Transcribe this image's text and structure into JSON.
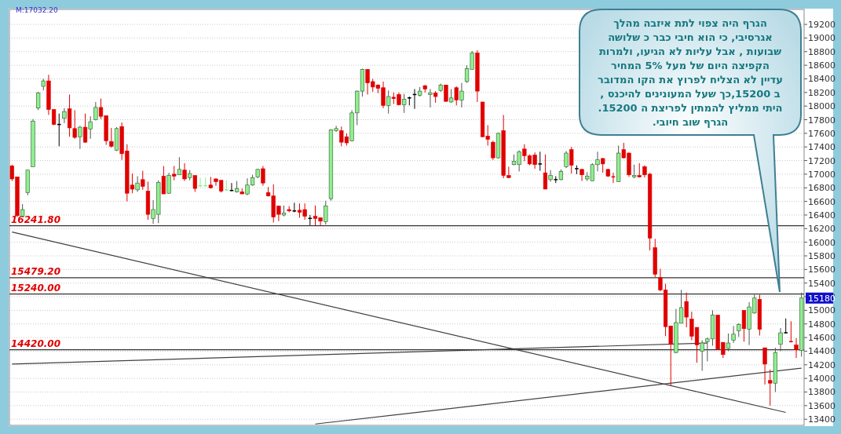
{
  "chart_data": {
    "type": "candlestick",
    "categories": [
      null,
      null,
      null,
      null,
      null,
      null,
      null,
      null,
      null,
      null,
      null,
      null,
      null,
      null,
      null,
      null,
      null,
      null,
      null,
      null,
      null,
      null,
      null,
      null,
      null,
      null,
      null,
      null,
      null,
      null,
      null,
      null,
      null,
      null,
      null,
      null,
      null,
      null,
      null,
      null,
      null,
      null,
      null,
      null,
      null,
      null,
      null,
      null,
      null,
      null,
      null,
      null,
      null,
      null,
      null,
      null,
      null,
      null,
      null,
      null,
      null,
      null,
      null,
      null,
      null,
      null,
      null,
      null,
      null,
      null,
      null,
      null,
      null,
      null,
      null,
      null,
      null,
      null,
      null,
      null,
      null,
      null,
      null,
      null,
      null,
      null,
      null,
      null,
      null,
      null,
      null,
      null,
      null,
      null,
      null,
      null,
      null,
      null,
      null,
      null,
      null,
      null,
      null,
      null,
      null,
      null,
      null,
      null,
      null,
      null,
      null,
      null,
      null,
      null,
      null,
      null,
      null,
      null,
      null,
      null,
      null,
      null,
      null,
      null,
      null,
      null,
      null,
      null,
      null,
      null,
      null,
      null,
      null,
      null,
      null,
      null,
      null,
      null,
      null,
      null,
      null,
      null,
      null,
      null,
      null,
      null,
      null,
      null,
      null,
      null,
      null,
      null
    ],
    "ohlc": [
      [
        17120,
        17140,
        16900,
        16930
      ],
      [
        16960,
        16960,
        16370,
        16390
      ],
      [
        16380,
        16560,
        16370,
        16480
      ],
      [
        16730,
        17060,
        16690,
        17060
      ],
      [
        17110,
        17810,
        17110,
        17780
      ],
      [
        17970,
        18210,
        17940,
        18190
      ],
      [
        18290,
        18400,
        18230,
        18370
      ],
      [
        18370,
        18460,
        17870,
        17950
      ],
      [
        17950,
        17950,
        17720,
        17730
      ],
      [
        17730,
        17890,
        17410,
        17730
      ],
      [
        17820,
        17970,
        17750,
        17920
      ],
      [
        17960,
        18170,
        17550,
        17680
      ],
      [
        17670,
        17940,
        17520,
        17540
      ],
      [
        17550,
        17710,
        17370,
        17690
      ],
      [
        17690,
        17890,
        17460,
        17470
      ],
      [
        17660,
        17850,
        17520,
        17770
      ],
      [
        17800,
        18060,
        17790,
        17980
      ],
      [
        17980,
        18110,
        17810,
        17850
      ],
      [
        17860,
        17860,
        17430,
        17490
      ],
      [
        17480,
        17680,
        17390,
        17410
      ],
      [
        17350,
        17690,
        17340,
        17670
      ],
      [
        17700,
        17760,
        17210,
        17300
      ],
      [
        17340,
        17440,
        16600,
        16720
      ],
      [
        16840,
        17010,
        16720,
        16780
      ],
      [
        16770,
        16970,
        16740,
        16870
      ],
      [
        16920,
        17050,
        16770,
        16820
      ],
      [
        16750,
        16890,
        16330,
        16410
      ],
      [
        16350,
        16620,
        16270,
        16480
      ],
      [
        16410,
        16910,
        16280,
        16880
      ],
      [
        16970,
        17120,
        16710,
        16710
      ],
      [
        16720,
        17020,
        16710,
        16980
      ],
      [
        17000,
        17120,
        16910,
        16970
      ],
      [
        16990,
        17250,
        16990,
        17070
      ],
      [
        17060,
        17160,
        16900,
        16930
      ],
      [
        16950,
        17060,
        16910,
        17010
      ],
      [
        16980,
        16980,
        16740,
        16790
      ],
      [
        16830,
        16950,
        16810,
        16830
      ],
      [
        16830,
        16950,
        16820,
        16830
      ],
      [
        16840,
        16960,
        16790,
        16800
      ],
      [
        16930,
        16940,
        16830,
        16890
      ],
      [
        16910,
        16910,
        16730,
        16750
      ],
      [
        16770,
        16910,
        16760,
        16770
      ],
      [
        16760,
        16870,
        16750,
        16760
      ],
      [
        16740,
        16900,
        16730,
        16790
      ],
      [
        16740,
        16790,
        16710,
        16710
      ],
      [
        16710,
        16940,
        16690,
        16840
      ],
      [
        16840,
        16990,
        16830,
        16950
      ],
      [
        16960,
        17080,
        16940,
        17070
      ],
      [
        17080,
        17120,
        16830,
        16870
      ],
      [
        16730,
        16810,
        16670,
        16680
      ],
      [
        16680,
        16850,
        16290,
        16370
      ],
      [
        16530,
        16540,
        16310,
        16410
      ],
      [
        16400,
        16540,
        16380,
        16430
      ],
      [
        16480,
        16530,
        16440,
        16460
      ],
      [
        16460,
        16580,
        16440,
        16460
      ],
      [
        16470,
        16570,
        16360,
        16440
      ],
      [
        16480,
        16570,
        16330,
        16380
      ],
      [
        16350,
        16400,
        16250,
        16350
      ],
      [
        16380,
        16540,
        16250,
        16350
      ],
      [
        16360,
        16360,
        16250,
        16310
      ],
      [
        16300,
        16610,
        16260,
        16530
      ],
      [
        16640,
        17660,
        16610,
        17650
      ],
      [
        17640,
        17710,
        17620,
        17670
      ],
      [
        17640,
        17700,
        17410,
        17470
      ],
      [
        17550,
        17600,
        17420,
        17460
      ],
      [
        17490,
        17940,
        17480,
        17900
      ],
      [
        17900,
        18230,
        17720,
        18220
      ],
      [
        18220,
        18550,
        18140,
        18540
      ],
      [
        18540,
        18540,
        18170,
        18340
      ],
      [
        18360,
        18400,
        18210,
        18280
      ],
      [
        18310,
        18320,
        18190,
        18260
      ],
      [
        18270,
        18360,
        17970,
        18010
      ],
      [
        18010,
        18230,
        17890,
        18140
      ],
      [
        18130,
        18200,
        18030,
        18110
      ],
      [
        18170,
        18200,
        18010,
        18020
      ],
      [
        18020,
        18180,
        17900,
        18100
      ],
      [
        18120,
        18140,
        18010,
        18120
      ],
      [
        18170,
        18250,
        17960,
        18170
      ],
      [
        18160,
        18280,
        18140,
        18220
      ],
      [
        18300,
        18310,
        18200,
        18250
      ],
      [
        18170,
        18250,
        17980,
        18190
      ],
      [
        18190,
        18220,
        18050,
        18140
      ],
      [
        18230,
        18330,
        18210,
        18310
      ],
      [
        18310,
        18310,
        18060,
        18070
      ],
      [
        18060,
        18250,
        18050,
        18120
      ],
      [
        18270,
        18290,
        18010,
        18090
      ],
      [
        18090,
        18340,
        17980,
        18220
      ],
      [
        18360,
        18600,
        18340,
        18550
      ],
      [
        18540,
        18810,
        18540,
        18780
      ],
      [
        18780,
        18820,
        18060,
        18220
      ],
      [
        18060,
        18060,
        17540,
        17550
      ],
      [
        17560,
        17720,
        17420,
        17510
      ],
      [
        17470,
        17490,
        17210,
        17240
      ],
      [
        17240,
        17610,
        17230,
        17600
      ],
      [
        17640,
        17870,
        16940,
        16980
      ],
      [
        16980,
        17110,
        16940,
        16950
      ],
      [
        17140,
        17290,
        17130,
        17190
      ],
      [
        17140,
        17350,
        17040,
        17330
      ],
      [
        17370,
        17440,
        17190,
        17270
      ],
      [
        17270,
        17290,
        17130,
        17150
      ],
      [
        17280,
        17320,
        17080,
        17140
      ],
      [
        17150,
        17330,
        17050,
        17150
      ],
      [
        17020,
        17290,
        16780,
        16780
      ],
      [
        16920,
        17060,
        16890,
        16980
      ],
      [
        16920,
        16970,
        16870,
        16920
      ],
      [
        16920,
        17070,
        16910,
        17040
      ],
      [
        17110,
        17340,
        17090,
        17310
      ],
      [
        17360,
        17400,
        17010,
        17130
      ],
      [
        17080,
        17130,
        17000,
        17080
      ],
      [
        17070,
        17080,
        16900,
        16990
      ],
      [
        16930,
        17030,
        16900,
        16970
      ],
      [
        16900,
        17160,
        16900,
        17140
      ],
      [
        17140,
        17330,
        17040,
        17210
      ],
      [
        17230,
        17240,
        17020,
        17150
      ],
      [
        17070,
        17080,
        16960,
        16970
      ],
      [
        16960,
        17020,
        16870,
        16960
      ],
      [
        16890,
        17420,
        16890,
        17310
      ],
      [
        17360,
        17460,
        17230,
        17240
      ],
      [
        17310,
        17320,
        16960,
        16990
      ],
      [
        16960,
        17140,
        16940,
        16980
      ],
      [
        16980,
        17160,
        16950,
        16960
      ],
      [
        17110,
        17130,
        16950,
        16990
      ],
      [
        17000,
        17020,
        15880,
        16060
      ],
      [
        15920,
        16050,
        15490,
        15530
      ],
      [
        15480,
        15610,
        15280,
        15300
      ],
      [
        15300,
        15390,
        14620,
        14760
      ],
      [
        14770,
        14770,
        13890,
        14500
      ],
      [
        14380,
        15020,
        14370,
        14820
      ],
      [
        14810,
        15300,
        14810,
        15040
      ],
      [
        15130,
        15260,
        14750,
        14900
      ],
      [
        14870,
        14980,
        14560,
        14620
      ],
      [
        14750,
        14750,
        14230,
        14490
      ],
      [
        14400,
        14560,
        14110,
        14520
      ],
      [
        14540,
        14600,
        14250,
        14580
      ],
      [
        14580,
        15000,
        14480,
        14930
      ],
      [
        14930,
        14930,
        14420,
        14430
      ],
      [
        14530,
        14530,
        14300,
        14350
      ],
      [
        14440,
        14660,
        14400,
        14520
      ],
      [
        14560,
        14770,
        14520,
        14650
      ],
      [
        14700,
        14810,
        14610,
        14790
      ],
      [
        15000,
        15000,
        14540,
        14730
      ],
      [
        14720,
        15120,
        14490,
        15050
      ],
      [
        14960,
        15230,
        14950,
        15180
      ],
      [
        15160,
        15230,
        14630,
        14720
      ],
      [
        14450,
        14450,
        13910,
        14210
      ],
      [
        13970,
        14130,
        13600,
        13930
      ],
      [
        13930,
        14450,
        13800,
        14380
      ],
      [
        14500,
        14740,
        14400,
        14670
      ],
      [
        14670,
        14880,
        14660,
        14670
      ],
      [
        14540,
        14840,
        14530,
        14540
      ],
      [
        14490,
        14590,
        14300,
        14420
      ],
      [
        14410,
        15260,
        14320,
        15180
      ]
    ],
    "colors": [
      "#e00000",
      "#e00000",
      "#90ee90",
      "#90ee90",
      "#90ee90",
      "#90ee90",
      "#90ee90",
      "#e00000",
      "#e00000",
      "#000000",
      "#90ee90",
      "#e00000",
      "#e00000",
      "#90ee90",
      "#e00000",
      "#90ee90",
      "#90ee90",
      "#e00000",
      "#e00000",
      "#e00000",
      "#90ee90",
      "#e00000",
      "#e00000",
      "#e00000",
      "#90ee90",
      "#e00000",
      "#e00000",
      "#90ee90",
      "#90ee90",
      "#e00000",
      "#90ee90",
      "#e00000",
      "#90ee90",
      "#e00000",
      "#90ee90",
      "#e00000",
      "#90ee90",
      "#90ee90",
      "#e00000",
      "#e00000",
      "#e00000",
      "#90ee90",
      "#000000",
      "#90ee90",
      "#e00000",
      "#90ee90",
      "#90ee90",
      "#90ee90",
      "#e00000",
      "#e00000",
      "#e00000",
      "#e00000",
      "#90ee90",
      "#e00000",
      "#000000",
      "#e00000",
      "#e00000",
      "#000000",
      "#e00000",
      "#e00000",
      "#90ee90",
      "#90ee90",
      "#90ee90",
      "#e00000",
      "#e00000",
      "#90ee90",
      "#90ee90",
      "#90ee90",
      "#e00000",
      "#e00000",
      "#e00000",
      "#e00000",
      "#90ee90",
      "#e00000",
      "#e00000",
      "#90ee90",
      "#000000",
      "#000000",
      "#90ee90",
      "#e00000",
      "#90ee90",
      "#e00000",
      "#90ee90",
      "#e00000",
      "#90ee90",
      "#e00000",
      "#90ee90",
      "#90ee90",
      "#90ee90",
      "#e00000",
      "#e00000",
      "#e00000",
      "#e00000",
      "#90ee90",
      "#e00000",
      "#e00000",
      "#90ee90",
      "#90ee90",
      "#e00000",
      "#e00000",
      "#e00000",
      "#000000",
      "#e00000",
      "#90ee90",
      "#000000",
      "#90ee90",
      "#90ee90",
      "#e00000",
      "#000000",
      "#e00000",
      "#90ee90",
      "#90ee90",
      "#90ee90",
      "#e00000",
      "#e00000",
      "#e00000",
      "#90ee90",
      "#e00000",
      "#e00000",
      "#90ee90",
      "#e00000",
      "#e00000",
      "#e00000",
      "#e00000",
      "#e00000",
      "#e00000",
      "#e00000",
      "#90ee90",
      "#90ee90",
      "#e00000",
      "#e00000",
      "#e00000",
      "#90ee90",
      "#90ee90",
      "#90ee90",
      "#e00000",
      "#e00000",
      "#90ee90",
      "#90ee90",
      "#90ee90",
      "#e00000",
      "#90ee90",
      "#90ee90",
      "#e00000",
      "#e00000",
      "#e00000",
      "#90ee90",
      "#90ee90",
      "#000000",
      "#e00000",
      "#e00000",
      "#90ee90"
    ],
    "series": [
      {
        "type": "line",
        "color": "#404040",
        "values": [
          16150,
          null,
          null,
          null,
          null,
          null,
          null,
          null,
          null,
          null,
          null,
          null,
          null,
          null,
          null,
          null,
          null,
          null,
          null,
          null,
          null,
          null,
          null,
          null,
          null,
          null,
          null,
          null,
          null,
          null,
          null,
          null,
          null,
          null,
          null,
          null,
          null,
          null,
          null,
          null,
          null,
          null,
          null,
          null,
          null,
          null,
          null,
          null,
          null,
          null,
          null,
          null,
          null,
          null,
          null,
          null,
          null,
          null,
          null,
          null,
          null,
          null,
          null,
          null,
          null,
          null,
          null,
          null,
          null,
          null,
          null,
          null,
          null,
          null,
          null,
          null,
          null,
          null,
          null,
          null,
          null,
          null,
          null,
          null,
          null,
          null,
          null,
          null,
          null,
          null,
          null,
          null,
          null,
          null,
          null,
          null,
          null,
          null,
          null,
          null,
          null,
          null,
          null,
          null,
          null,
          null,
          null,
          null,
          null,
          null,
          null,
          null,
          null,
          null,
          null,
          null,
          null,
          null,
          null,
          null,
          null,
          null,
          null,
          null,
          null,
          null,
          null,
          null,
          null,
          null,
          null,
          null,
          null,
          null,
          null,
          null,
          null,
          null,
          null,
          null,
          null,
          null,
          null,
          null,
          null,
          null,
          null,
          null,
          13500,
          null,
          null,
          null
        ]
      },
      {
        "type": "line",
        "color": "#404040",
        "values": [
          null,
          null,
          null,
          null,
          null,
          null,
          null,
          null,
          null,
          null,
          null,
          null,
          null,
          null,
          null,
          null,
          null,
          null,
          null,
          null,
          null,
          null,
          null,
          null,
          null,
          null,
          null,
          null,
          null,
          null,
          null,
          null,
          null,
          null,
          null,
          null,
          null,
          null,
          null,
          null,
          null,
          null,
          null,
          null,
          null,
          null,
          null,
          null,
          null,
          null,
          null,
          null,
          null,
          null,
          null,
          null,
          null,
          null,
          13330,
          null,
          null,
          null,
          null,
          null,
          null,
          null,
          null,
          null,
          null,
          null,
          null,
          null,
          null,
          null,
          null,
          null,
          null,
          null,
          null,
          null,
          null,
          null,
          null,
          null,
          null,
          null,
          null,
          null,
          null,
          null,
          null,
          null,
          null,
          null,
          null,
          null,
          null,
          null,
          null,
          null,
          null,
          null,
          null,
          null,
          null,
          null,
          null,
          null,
          null,
          null,
          null,
          null,
          null,
          null,
          null,
          null,
          null,
          null,
          null,
          null,
          null,
          null,
          null,
          null,
          null,
          null,
          null,
          null,
          null,
          null,
          null,
          null,
          null,
          null,
          null,
          null,
          null,
          null,
          null,
          null,
          null,
          null,
          null,
          null,
          null,
          null,
          null,
          null,
          null,
          null,
          null,
          14150
        ]
      },
      {
        "type": "line",
        "color": "#404040",
        "values": [
          14210,
          null,
          null,
          null,
          null,
          null,
          null,
          null,
          null,
          null,
          null,
          null,
          null,
          null,
          null,
          null,
          null,
          null,
          null,
          null,
          null,
          null,
          null,
          null,
          null,
          null,
          null,
          null,
          null,
          null,
          null,
          null,
          null,
          null,
          null,
          null,
          null,
          null,
          null,
          null,
          null,
          null,
          null,
          null,
          null,
          null,
          null,
          null,
          null,
          null,
          null,
          null,
          null,
          null,
          null,
          null,
          null,
          null,
          null,
          null,
          null,
          null,
          null,
          null,
          null,
          null,
          null,
          null,
          null,
          null,
          null,
          null,
          null,
          null,
          null,
          null,
          null,
          null,
          null,
          null,
          null,
          null,
          null,
          null,
          null,
          null,
          null,
          null,
          null,
          null,
          null,
          null,
          null,
          null,
          null,
          null,
          null,
          null,
          null,
          null,
          null,
          null,
          null,
          null,
          null,
          null,
          null,
          null,
          null,
          null,
          null,
          null,
          null,
          null,
          null,
          null,
          null,
          null,
          null,
          null,
          null,
          null,
          null,
          null,
          null,
          null,
          null,
          null,
          null,
          null,
          null,
          null,
          null,
          14520,
          null,
          null,
          null,
          null,
          null,
          null,
          null,
          null,
          null,
          null,
          null,
          null,
          null,
          null,
          null,
          null,
          null,
          null
        ]
      }
    ],
    "ylim": [
      13310,
      19420
    ],
    "yticks": [
      13400,
      13600,
      13800,
      14000,
      14200,
      14400,
      14600,
      14800,
      15000,
      15200,
      15400,
      15600,
      15800,
      16000,
      16200,
      16400,
      16600,
      16800,
      17000,
      17200,
      17400,
      17600,
      17800,
      18000,
      18200,
      18400,
      18600,
      18800,
      19000,
      19200
    ],
    "tick_labels": "y",
    "grid": "y",
    "ref_lines": [
      {
        "axis": "y",
        "value": 16241.8,
        "label": "16241.80",
        "color": "#333333"
      },
      {
        "axis": "y",
        "value": 15479.2,
        "label": "15479.20",
        "color": "#333333"
      },
      {
        "axis": "y",
        "value": 15240.0,
        "label": "15240.00",
        "color": "#333333"
      },
      {
        "axis": "y",
        "value": 14420.0,
        "label": "14420.00",
        "color": "#333333"
      }
    ],
    "annotations": [
      "M:17032.20",
      "הגרף היה צפוי לתת איזבה מהלך\nאגרסיבי, כי הוא חיבי כבר כ שלושה\nשבועות , אבל עליות לא הגיעו, ולמרות\nהקפיצה היום של מעל 5% המחיר\nעדיין לא הצליח לפרוץ את הקו המדובר\nב 15200,כך שעל המעונינים להיכנס ,\nהיתי ממליץ להמתין לפריצת ה 15200.\nהגרף שוב חיובי.",
      "15180"
    ]
  }
}
